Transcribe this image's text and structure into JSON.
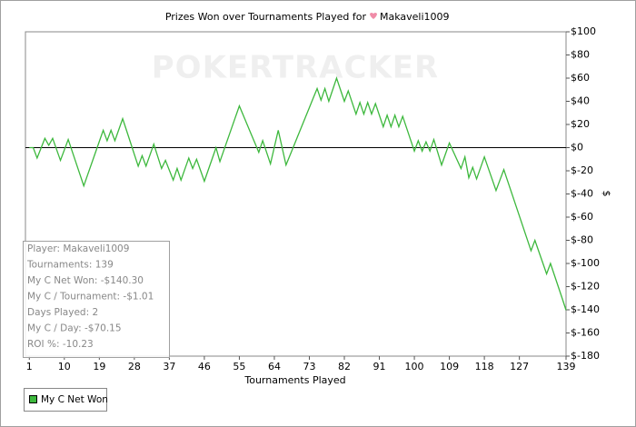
{
  "chart_data": {
    "type": "line",
    "title": "Prizes Won over Tournaments Played for",
    "title_player": "Makaveli1009",
    "watermark": "POKERTRACKER",
    "x_label": "Tournaments Played",
    "y_label": "$",
    "x": [
      1,
      2,
      3,
      4,
      5,
      6,
      7,
      8,
      9,
      10,
      11,
      12,
      13,
      14,
      15,
      16,
      17,
      18,
      19,
      20,
      21,
      22,
      23,
      24,
      25,
      26,
      27,
      28,
      29,
      30,
      31,
      32,
      33,
      34,
      35,
      36,
      37,
      38,
      39,
      40,
      41,
      42,
      43,
      44,
      45,
      46,
      47,
      48,
      49,
      50,
      51,
      52,
      53,
      54,
      55,
      56,
      57,
      58,
      59,
      60,
      61,
      62,
      63,
      64,
      65,
      66,
      67,
      68,
      69,
      70,
      71,
      72,
      73,
      74,
      75,
      76,
      77,
      78,
      79,
      80,
      81,
      82,
      83,
      84,
      85,
      86,
      87,
      88,
      89,
      90,
      91,
      92,
      93,
      94,
      95,
      96,
      97,
      98,
      99,
      100,
      101,
      102,
      103,
      104,
      105,
      106,
      107,
      108,
      109,
      110,
      111,
      112,
      113,
      114,
      115,
      116,
      117,
      118,
      119,
      120,
      121,
      122,
      123,
      124,
      125,
      126,
      127,
      128,
      129,
      130,
      131,
      132,
      133,
      134,
      135,
      136,
      137,
      138,
      139
    ],
    "series": [
      {
        "name": "My C Net Won",
        "color": "#3db83d",
        "values": [
          0,
          0,
          -9,
          -0.5,
          8,
          2,
          8,
          -1.5,
          -11,
          -2,
          7,
          -3,
          -13,
          -23,
          -33,
          -23.4,
          -13.8,
          -4.2,
          5.4,
          15,
          6,
          15,
          6,
          15.5,
          25,
          14.8,
          4.5,
          -5.8,
          -16,
          -7,
          -16,
          -6.5,
          3,
          -7.5,
          -18,
          -11,
          -19.5,
          -28,
          -18,
          -28,
          -18.5,
          -9,
          -18,
          -10,
          -19.5,
          -29,
          -19.3,
          -9.7,
          0,
          -12,
          -2.4,
          7.2,
          16.8,
          26.4,
          36,
          28,
          20,
          12,
          4,
          -4,
          6,
          -4,
          -14,
          0.5,
          15,
          0,
          -15,
          -6.8,
          1.5,
          9.8,
          18,
          26.3,
          34.5,
          42.8,
          51,
          41,
          51,
          40,
          50,
          60,
          50,
          40,
          49,
          39,
          29,
          39,
          29,
          39,
          29,
          38,
          28,
          18,
          28,
          18,
          28,
          18,
          27,
          17,
          7,
          -3,
          6,
          -3,
          5,
          -3,
          7,
          -4,
          -15,
          -5.5,
          4,
          -3.3,
          -10.7,
          -18,
          -8,
          -26,
          -17,
          -27,
          -17.5,
          -8,
          -17.7,
          -27.3,
          -37,
          -28,
          -19,
          -29,
          -39,
          -49,
          -59,
          -69,
          -79,
          -89,
          -80,
          -89.7,
          -99.3,
          -109,
          -100,
          -110,
          -120,
          -130,
          -140.3
        ]
      }
    ],
    "xlim": [
      0,
      139
    ],
    "xticks": [
      1,
      10,
      19,
      28,
      37,
      46,
      55,
      64,
      73,
      82,
      91,
      100,
      109,
      118,
      127,
      139
    ],
    "ylim": [
      -180,
      100
    ],
    "yticks": [
      {
        "value": 100,
        "label": "$100"
      },
      {
        "value": 80,
        "label": "$80"
      },
      {
        "value": 60,
        "label": "$60"
      },
      {
        "value": 40,
        "label": "$40"
      },
      {
        "value": 20,
        "label": "$20"
      },
      {
        "value": 0,
        "label": "$0"
      },
      {
        "value": -20,
        "label": "$-20"
      },
      {
        "value": -40,
        "label": "$-40"
      },
      {
        "value": -60,
        "label": "$-60"
      },
      {
        "value": -80,
        "label": "$-80"
      },
      {
        "value": -100,
        "label": "$-100"
      },
      {
        "value": -120,
        "label": "$-120"
      },
      {
        "value": -140,
        "label": "$-140"
      },
      {
        "value": -160,
        "label": "$-160"
      },
      {
        "value": -180,
        "label": "$-180"
      }
    ],
    "zero_line": true,
    "grid": false,
    "legend": "bottom-left",
    "stats": [
      "Player: Makaveli1009",
      "Tournaments: 139",
      "My C Net Won: -$140.30",
      "My C / Tournament: -$1.01",
      "Days Played: 2",
      "My C / Day: -$70.15",
      "ROI %: -10.23"
    ]
  }
}
